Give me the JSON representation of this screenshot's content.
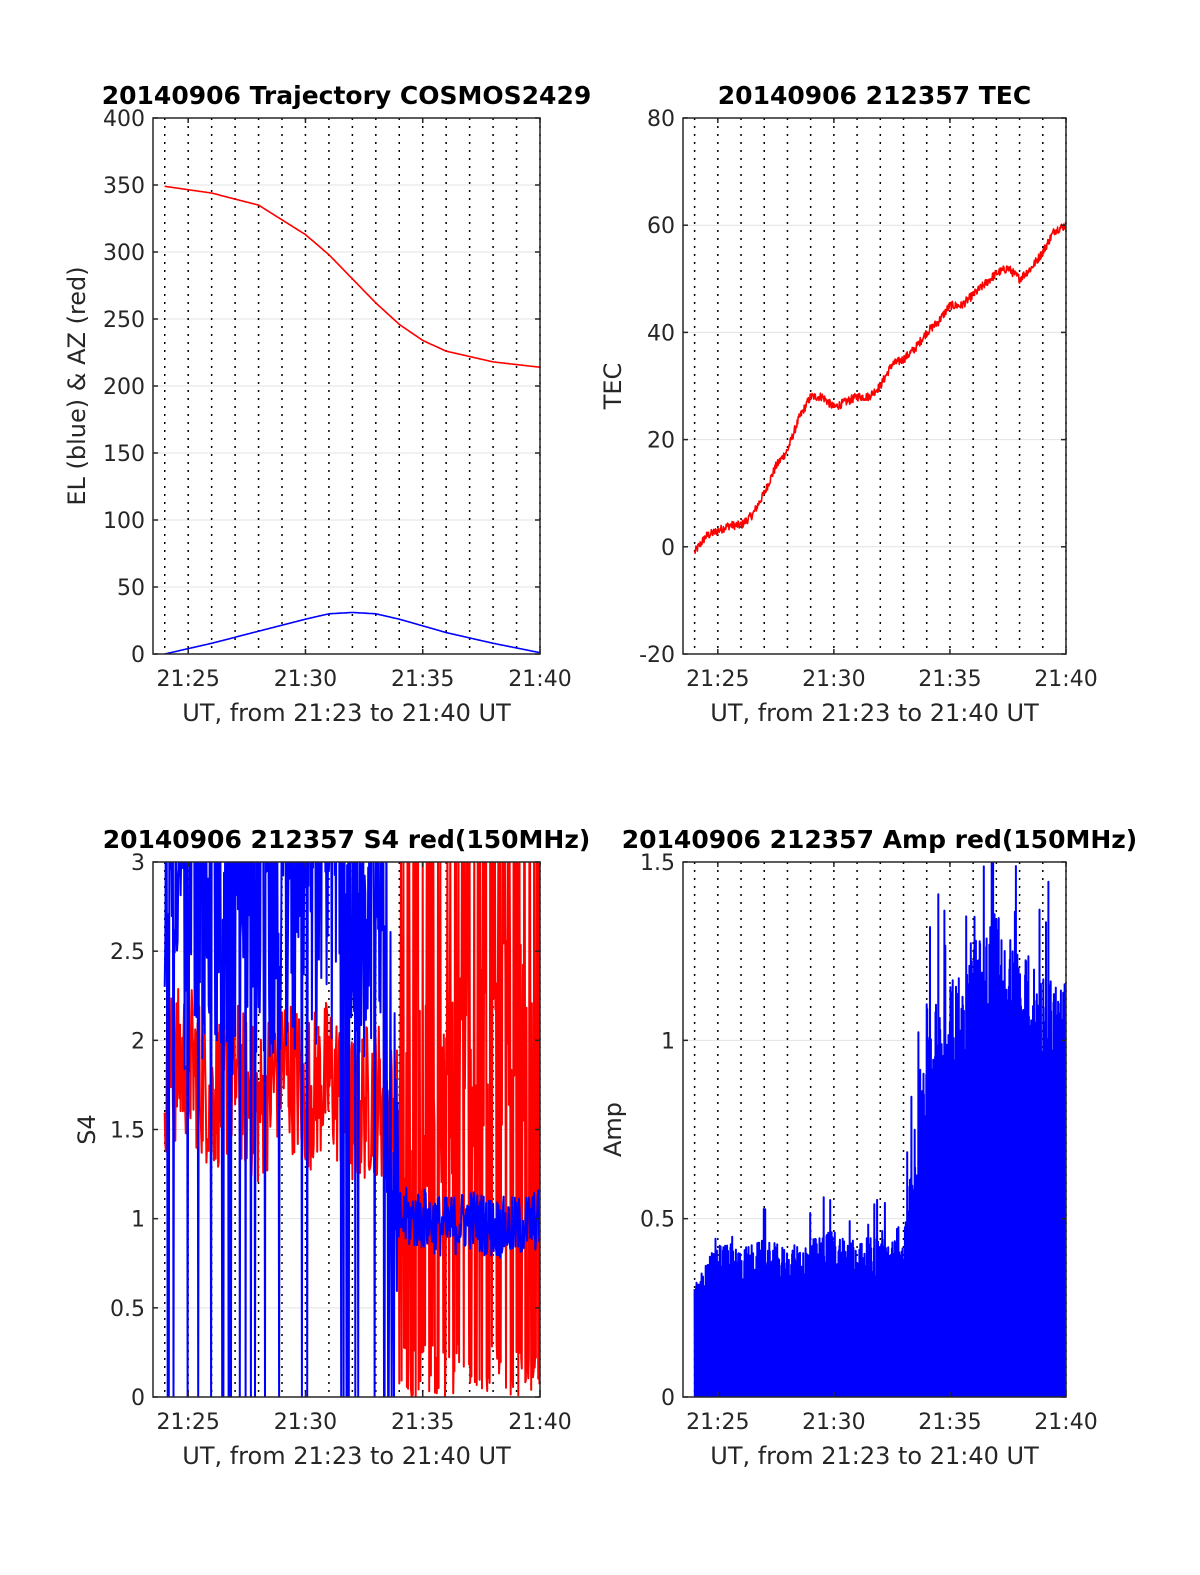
{
  "chart_data": [
    {
      "type": "line",
      "title": "20140906 Trajectory COSMOS2429",
      "xlabel": "UT, from 21:23 to 21:40 UT",
      "ylabel": "EL (blue) & AZ (red)",
      "xlim": [
        "21:23:30",
        "21:40:00"
      ],
      "ylim": [
        0,
        400
      ],
      "xticks": [
        "21:25",
        "21:30",
        "21:35",
        "21:40"
      ],
      "yticks": [
        "0",
        "50",
        "100",
        "150",
        "200",
        "250",
        "300",
        "350",
        "400"
      ],
      "grid": true,
      "series": [
        {
          "color": "#ff0000",
          "x": [
            "21:24",
            "21:26",
            "21:28",
            "21:30",
            "21:31",
            "21:32",
            "21:33",
            "21:34",
            "21:35",
            "21:36",
            "21:38",
            "21:40"
          ],
          "values": [
            349,
            344,
            335,
            313,
            298,
            280,
            262,
            246,
            234,
            226,
            218,
            214
          ]
        },
        {
          "color": "#0000ff",
          "x": [
            "21:24",
            "21:26",
            "21:28",
            "21:30",
            "21:31",
            "21:32",
            "21:33",
            "21:34",
            "21:35",
            "21:36",
            "21:38",
            "21:40"
          ],
          "values": [
            0,
            8,
            17,
            26,
            30,
            31,
            30,
            26,
            21,
            16,
            8,
            1
          ]
        }
      ]
    },
    {
      "type": "line",
      "title": "20140906 212357 TEC",
      "xlabel": "UT, from 21:23 to 21:40 UT",
      "ylabel": "TEC",
      "xlim": [
        "21:23:30",
        "21:40:00"
      ],
      "ylim": [
        -20,
        80
      ],
      "xticks": [
        "21:25",
        "21:30",
        "21:35",
        "21:40"
      ],
      "yticks": [
        "-20",
        "0",
        "20",
        "40",
        "60",
        "80"
      ],
      "grid": true,
      "series": [
        {
          "color": "#ff0000",
          "x": [
            "21:24",
            "21:24:30",
            "21:25",
            "21:25:30",
            "21:26",
            "21:26:30",
            "21:27",
            "21:27:30",
            "21:28",
            "21:28:30",
            "21:29",
            "21:29:30",
            "21:30",
            "21:30:30",
            "21:31",
            "21:31:30",
            "21:32",
            "21:32:30",
            "21:33",
            "21:33:30",
            "21:34",
            "21:34:30",
            "21:35",
            "21:35:30",
            "21:36",
            "21:36:30",
            "21:37",
            "21:37:30",
            "21:38",
            "21:38:30",
            "21:39",
            "21:39:30",
            "21:40"
          ],
          "values": [
            -1,
            2,
            3,
            4,
            4,
            6,
            10,
            15,
            18,
            24,
            28,
            28,
            26,
            27,
            28,
            28,
            30,
            34,
            35,
            37,
            40,
            42,
            45,
            45,
            47,
            49,
            51,
            52,
            50,
            52,
            55,
            59,
            60
          ]
        }
      ]
    },
    {
      "type": "line",
      "title": "20140906 212357 S4 red(150MHz)",
      "xlabel": "UT, from 21:23 to 21:40 UT",
      "ylabel": "S4",
      "xlim": [
        "21:23:30",
        "21:40:00"
      ],
      "ylim": [
        0,
        3
      ],
      "xticks": [
        "21:25",
        "21:30",
        "21:35",
        "21:40"
      ],
      "yticks": [
        "0",
        "0.5",
        "1",
        "1.5",
        "2",
        "2.5",
        "3"
      ],
      "grid": true,
      "series": [
        {
          "color": "#ff0000",
          "x": [
            "21:24",
            "21:25",
            "21:26",
            "21:27",
            "21:28",
            "21:29",
            "21:30",
            "21:31",
            "21:32",
            "21:33",
            "21:34",
            "21:35",
            "21:36",
            "21:37",
            "21:38",
            "21:39",
            "21:40"
          ],
          "values": [
            1.8,
            1.9,
            1.7,
            1.8,
            1.6,
            1.9,
            1.7,
            1.8,
            1.6,
            1.7,
            1.5,
            1.6,
            1.8,
            1.9,
            2.0,
            2.0,
            2.1
          ]
        },
        {
          "color": "#0000ff",
          "x": [
            "21:24",
            "21:25",
            "21:26",
            "21:27",
            "21:28",
            "21:29",
            "21:30",
            "21:31",
            "21:32",
            "21:33",
            "21:34",
            "21:35",
            "21:36",
            "21:37",
            "21:38",
            "21:39",
            "21:40"
          ],
          "values": [
            2.6,
            2.5,
            2.6,
            2.5,
            2.6,
            2.5,
            2.6,
            2.5,
            2.6,
            2.6,
            1.0,
            1.0,
            0.95,
            1.0,
            0.95,
            0.95,
            1.0
          ]
        }
      ]
    },
    {
      "type": "line",
      "title": "20140906 212357 Amp red(150MHz)",
      "xlabel": "UT, from 21:23 to 21:40 UT",
      "ylabel": "Amp",
      "xlim": [
        "21:23:30",
        "21:40:00"
      ],
      "ylim": [
        0,
        1.5
      ],
      "xticks": [
        "21:25",
        "21:30",
        "21:35",
        "21:40"
      ],
      "yticks": [
        "0",
        "0.5",
        "1",
        "1.5"
      ],
      "grid": true,
      "series": [
        {
          "color": "#0000ff",
          "x": [
            "21:24",
            "21:25",
            "21:26",
            "21:27",
            "21:28",
            "21:29",
            "21:30",
            "21:31",
            "21:32",
            "21:33",
            "21:34",
            "21:35",
            "21:36",
            "21:37",
            "21:38",
            "21:39",
            "21:40"
          ],
          "values": [
            0.3,
            0.42,
            0.4,
            0.42,
            0.4,
            0.42,
            0.45,
            0.42,
            0.43,
            0.42,
            1.05,
            1.1,
            1.25,
            1.3,
            1.2,
            1.15,
            1.1
          ],
          "envelope_min": [
            0,
            0,
            0,
            0,
            0,
            0,
            0,
            0,
            0,
            0,
            0,
            0,
            0,
            0,
            0,
            0,
            0
          ]
        }
      ]
    }
  ]
}
